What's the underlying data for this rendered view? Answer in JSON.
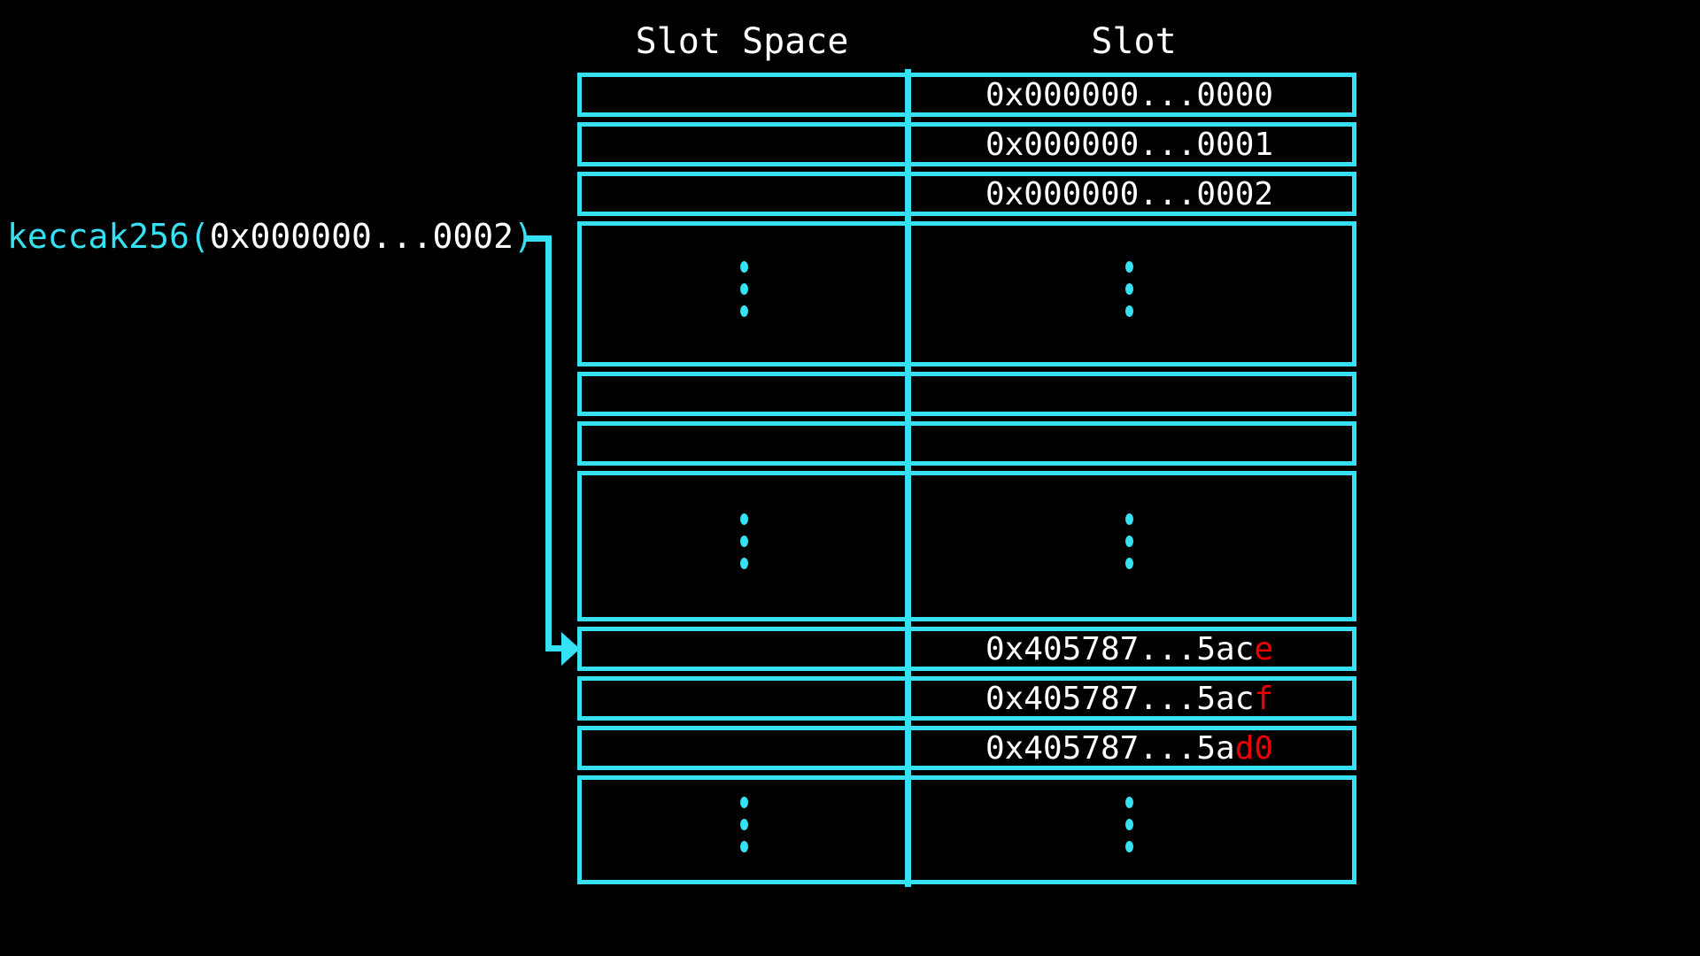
{
  "annotation": {
    "function_name": "keccak256",
    "open_paren": "(",
    "argument": "0x000000...0002",
    "close_paren": ")"
  },
  "table": {
    "left_header": "Slot Space",
    "right_header": "Slot",
    "rows": [
      {
        "type": "value",
        "slot_white": "0x000000...0000",
        "slot_red": ""
      },
      {
        "type": "value",
        "slot_white": "0x000000...0001",
        "slot_red": ""
      },
      {
        "type": "value",
        "slot_white": "0x000000...0002",
        "slot_red": ""
      },
      {
        "type": "ellipsis"
      },
      {
        "type": "empty"
      },
      {
        "type": "empty"
      },
      {
        "type": "ellipsis"
      },
      {
        "type": "value",
        "slot_white": "0x405787...5ac",
        "slot_red": "e"
      },
      {
        "type": "value",
        "slot_white": "0x405787...5ac",
        "slot_red": "f"
      },
      {
        "type": "value",
        "slot_white": "0x405787...5a",
        "slot_red": "d0"
      },
      {
        "type": "ellipsis"
      }
    ]
  },
  "colors": {
    "accent_cyan": "#35E1F2",
    "highlight_red": "#EC0000",
    "text_white": "#FFFFFF",
    "background": "#000000"
  }
}
